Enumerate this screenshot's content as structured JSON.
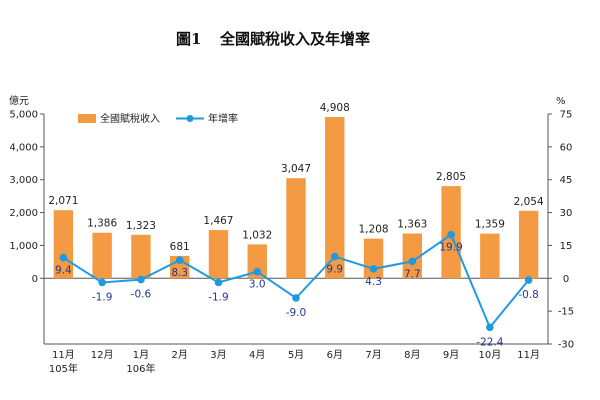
{
  "chart_data": {
    "type": "bar",
    "title_prefix": "圖1",
    "title": "全國賦稅收入及年增率",
    "left_unit": "億元",
    "right_unit": "%",
    "categories": [
      [
        "11月",
        "105年"
      ],
      [
        "12月"
      ],
      [
        "1月",
        "106年"
      ],
      [
        "2月"
      ],
      [
        "3月"
      ],
      [
        "4月"
      ],
      [
        "5月"
      ],
      [
        "6月"
      ],
      [
        "7月"
      ],
      [
        "8月"
      ],
      [
        "9月"
      ],
      [
        "10月"
      ],
      [
        "11月"
      ]
    ],
    "series": [
      {
        "name": "全國賦稅收入",
        "type": "bar",
        "axis": "left",
        "color": "#f39a42",
        "values": [
          2071,
          1386,
          1323,
          681,
          1467,
          1032,
          3047,
          4908,
          1208,
          1363,
          2805,
          1359,
          2054
        ],
        "labels": [
          "2,071",
          "1,386",
          "1,323",
          "681",
          "1,467",
          "1,032",
          "3,047",
          "4,908",
          "1,208",
          "1,363",
          "2,805",
          "1,359",
          "2,054"
        ]
      },
      {
        "name": "年增率",
        "type": "line",
        "axis": "right",
        "color": "#1e9be0",
        "values": [
          9.4,
          -1.9,
          -0.6,
          8.3,
          -1.9,
          3.0,
          -9.0,
          9.9,
          4.3,
          7.7,
          19.9,
          -22.4,
          -0.8
        ],
        "labels": [
          "9.4",
          "-1.9",
          "-0.6",
          "8.3",
          "-1.9",
          "3.0",
          "-9.0",
          "9.9",
          "4.3",
          "7.7",
          "19.9",
          "-22.4",
          "-0.8"
        ]
      }
    ],
    "left_axis": {
      "range": [
        -2000,
        5000
      ],
      "ticks": [
        0,
        1000,
        2000,
        3000,
        4000,
        5000
      ],
      "tick_labels": [
        "0",
        "1,000",
        "2,000",
        "3,000",
        "4,000",
        "5,000"
      ]
    },
    "right_axis": {
      "range": [
        -30,
        75
      ],
      "ticks": [
        -30,
        -15,
        0,
        15,
        30,
        45,
        60,
        75
      ],
      "tick_labels": [
        "-30",
        "-15",
        "0",
        "15",
        "30",
        "45",
        "60",
        "75"
      ]
    },
    "legend_position": "top-left",
    "grid": false
  }
}
